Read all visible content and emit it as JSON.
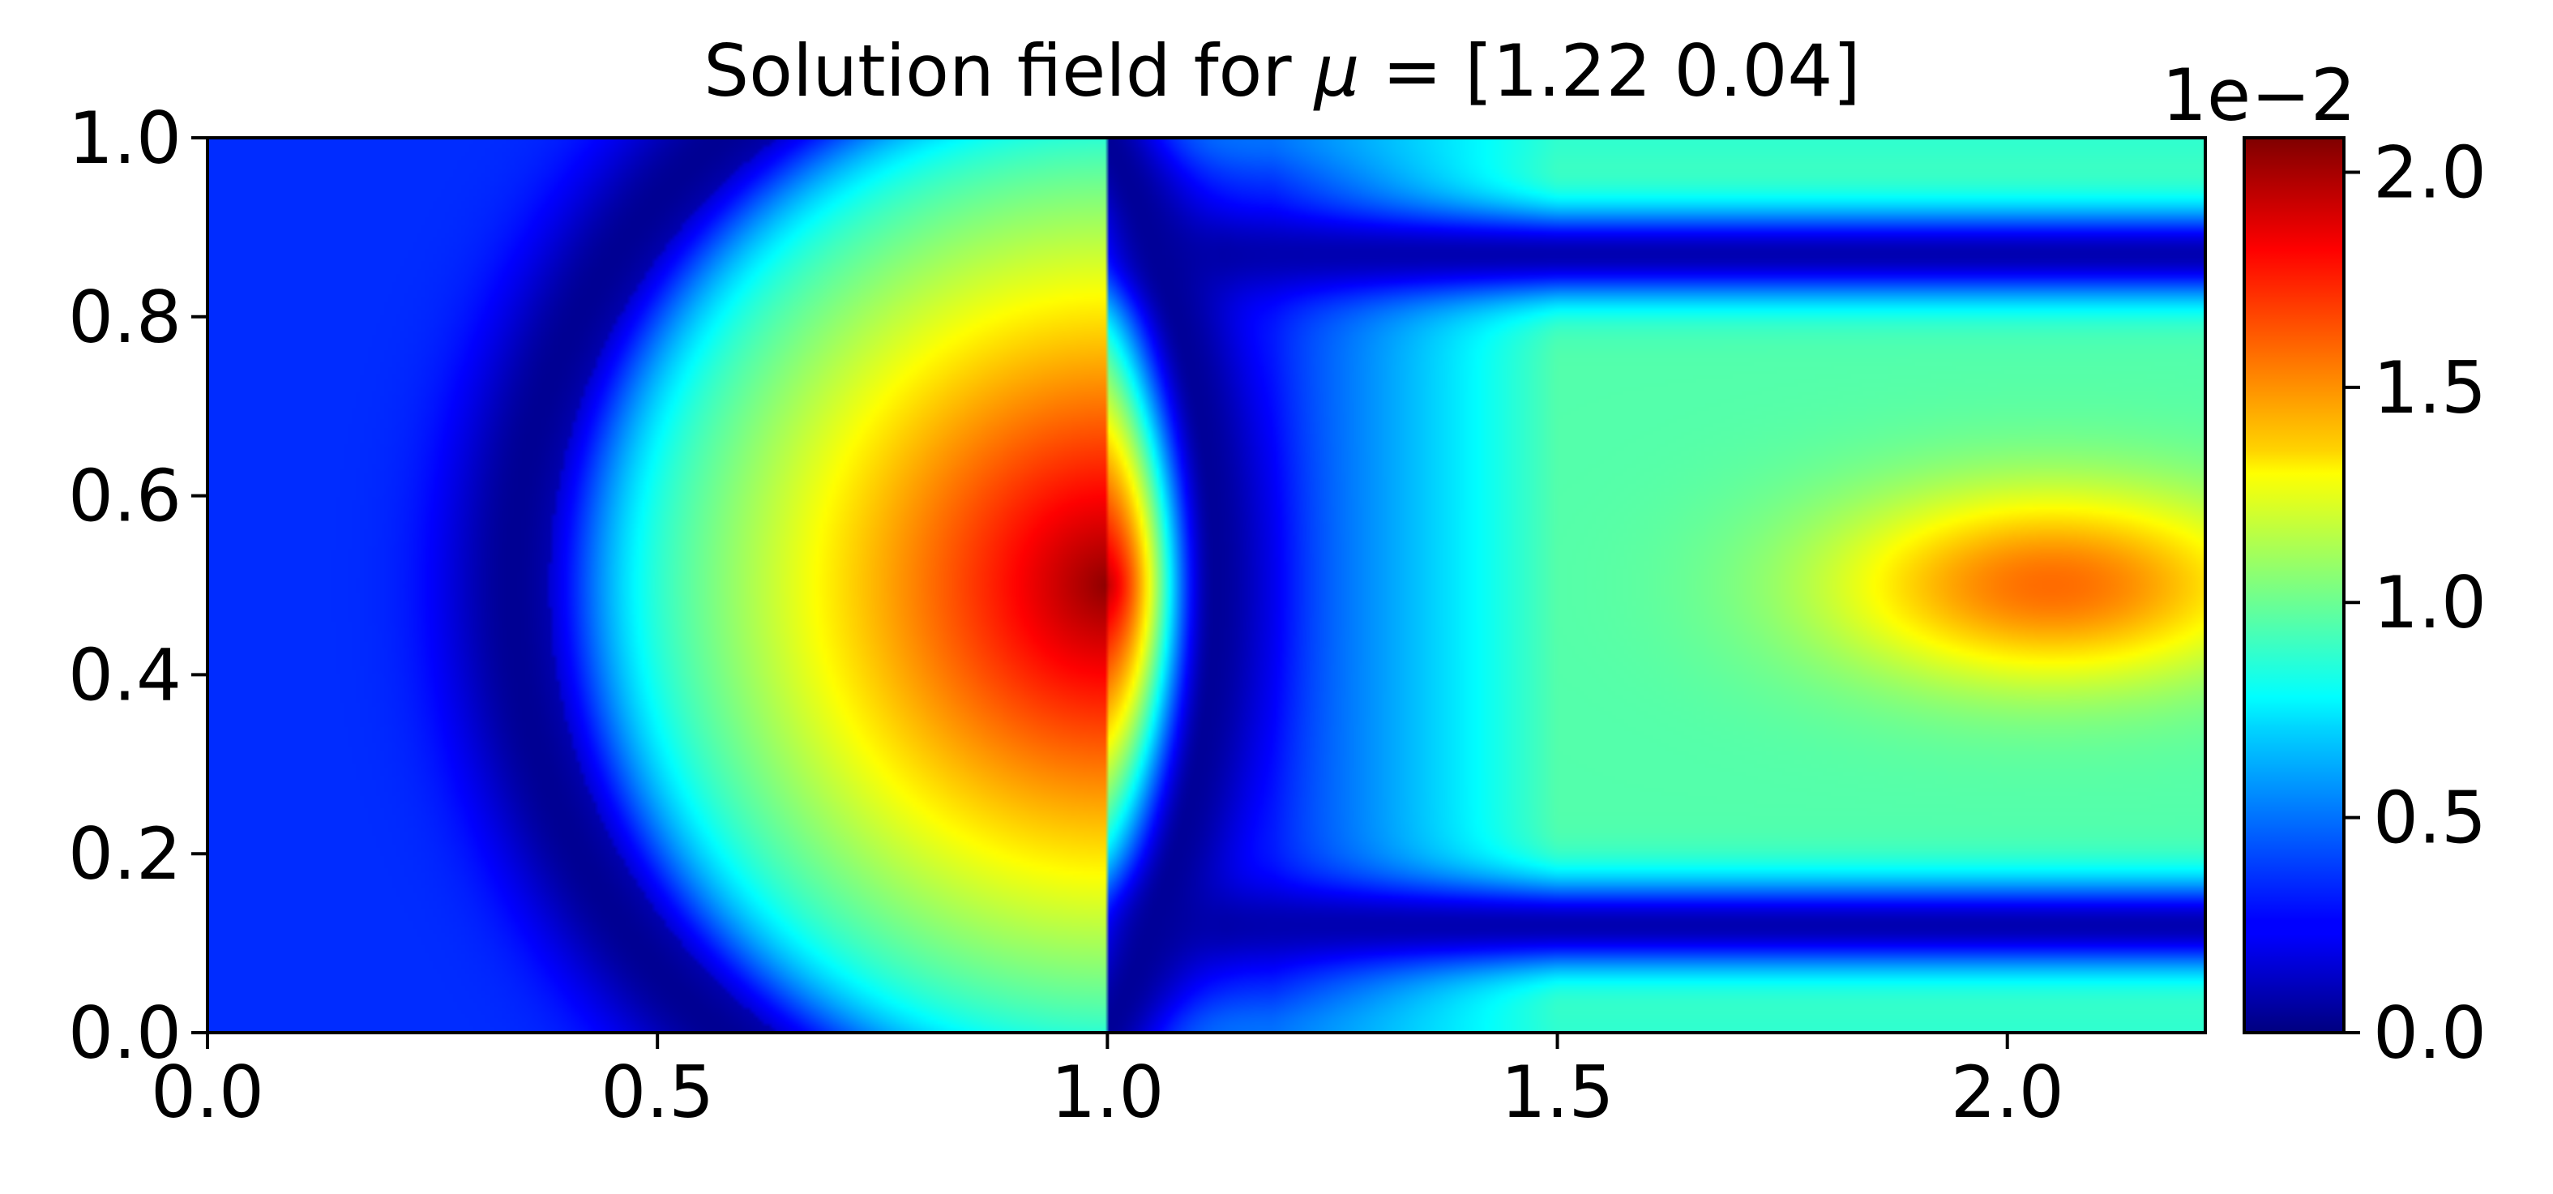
{
  "chart_data": {
    "type": "heatmap",
    "title": "Solution field for",
    "title_math": "μ",
    "title_value": "= [1.22 0.04]",
    "xlabel": "",
    "ylabel": "",
    "xlim": [
      0.0,
      2.22
    ],
    "ylim": [
      0.0,
      1.0
    ],
    "x_ticks": [
      0.0,
      0.5,
      1.0,
      1.5,
      2.0
    ],
    "x_tick_labels": [
      "0.0",
      "0.5",
      "1.0",
      "1.5",
      "2.0"
    ],
    "y_ticks": [
      0.0,
      0.2,
      0.4,
      0.6,
      0.8,
      1.0
    ],
    "y_tick_labels": [
      "0.0",
      "0.2",
      "0.4",
      "0.6",
      "0.8",
      "1.0"
    ],
    "colormap": "jet",
    "colorbar": {
      "range": [
        0.0,
        2.08
      ],
      "ticks": [
        0.0,
        0.5,
        1.0,
        1.5,
        2.0
      ],
      "tick_labels": [
        "0.0",
        "0.5",
        "1.0",
        "1.5",
        "2.0"
      ],
      "exponent_label": "1e−2"
    },
    "field_features": [
      {
        "kind": "background",
        "value": 0.35
      },
      {
        "kind": "radial_wave",
        "center": [
          1.0,
          0.5
        ],
        "value_at_center": 2.05
      },
      {
        "kind": "shock_front",
        "x": 1.0
      },
      {
        "kind": "dark_bands",
        "y": [
          0.12,
          0.87
        ],
        "x_from": 1.05,
        "value": 0.1
      },
      {
        "kind": "hot_spot",
        "center": [
          2.05,
          0.5
        ],
        "value": 1.6
      }
    ],
    "grid": false,
    "legend": "none"
  }
}
